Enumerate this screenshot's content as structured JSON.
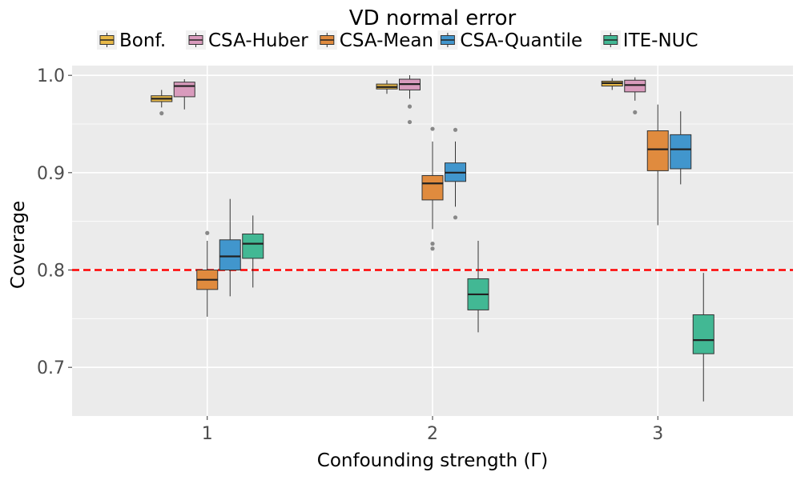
{
  "chart_data": {
    "type": "box",
    "legend": {
      "title": "VD normal error",
      "position": "top"
    },
    "xlabel": "Confounding strength (Γ)",
    "ylabel": "Coverage",
    "categories": [
      "1",
      "2",
      "3"
    ],
    "ylim": [
      0.65,
      1.01
    ],
    "yticks": [
      "0.7",
      "0.8",
      "0.9",
      "1.0"
    ],
    "reference_line": {
      "y": 0.8,
      "color": "#ff0000",
      "style": "dashed"
    },
    "grid": true,
    "series": [
      {
        "name": "Bonf.",
        "color": "#e8b948",
        "boxes": [
          {
            "category": "1",
            "whisker_low": 0.967,
            "q1": 0.973,
            "median": 0.976,
            "q3": 0.979,
            "whisker_high": 0.985,
            "outliers": [
              0.961
            ]
          },
          {
            "category": "2",
            "whisker_low": 0.981,
            "q1": 0.986,
            "median": 0.988,
            "q3": 0.991,
            "whisker_high": 0.995,
            "outliers": []
          },
          {
            "category": "3",
            "whisker_low": 0.985,
            "q1": 0.989,
            "median": 0.992,
            "q3": 0.994,
            "whisker_high": 0.997,
            "outliers": []
          }
        ]
      },
      {
        "name": "CSA-Huber",
        "color": "#d99bbd",
        "boxes": [
          {
            "category": "1",
            "whisker_low": 0.965,
            "q1": 0.978,
            "median": 0.989,
            "q3": 0.993,
            "whisker_high": 0.996,
            "outliers": []
          },
          {
            "category": "2",
            "whisker_low": 0.976,
            "q1": 0.985,
            "median": 0.991,
            "q3": 0.996,
            "whisker_high": 1.0,
            "outliers": [
              0.968,
              0.952
            ]
          },
          {
            "category": "3",
            "whisker_low": 0.974,
            "q1": 0.983,
            "median": 0.99,
            "q3": 0.995,
            "whisker_high": 0.998,
            "outliers": [
              0.962
            ]
          }
        ]
      },
      {
        "name": "CSA-Mean",
        "color": "#e08b3e",
        "boxes": [
          {
            "category": "1",
            "whisker_low": 0.752,
            "q1": 0.78,
            "median": 0.79,
            "q3": 0.8,
            "whisker_high": 0.83,
            "outliers": [
              0.838
            ]
          },
          {
            "category": "2",
            "whisker_low": 0.842,
            "q1": 0.872,
            "median": 0.889,
            "q3": 0.897,
            "whisker_high": 0.932,
            "outliers": [
              0.945,
              0.827,
              0.822
            ]
          },
          {
            "category": "3",
            "whisker_low": 0.846,
            "q1": 0.902,
            "median": 0.924,
            "q3": 0.943,
            "whisker_high": 0.97,
            "outliers": []
          }
        ]
      },
      {
        "name": "CSA-Quantile",
        "color": "#4196cd",
        "boxes": [
          {
            "category": "1",
            "whisker_low": 0.773,
            "q1": 0.8,
            "median": 0.814,
            "q3": 0.831,
            "whisker_high": 0.873,
            "outliers": []
          },
          {
            "category": "2",
            "whisker_low": 0.865,
            "q1": 0.891,
            "median": 0.9,
            "q3": 0.91,
            "whisker_high": 0.932,
            "outliers": [
              0.944,
              0.854
            ]
          },
          {
            "category": "3",
            "whisker_low": 0.888,
            "q1": 0.904,
            "median": 0.924,
            "q3": 0.939,
            "whisker_high": 0.963,
            "outliers": []
          }
        ]
      },
      {
        "name": "ITE-NUC",
        "color": "#42b894",
        "boxes": [
          {
            "category": "1",
            "whisker_low": 0.782,
            "q1": 0.812,
            "median": 0.827,
            "q3": 0.837,
            "whisker_high": 0.856,
            "outliers": []
          },
          {
            "category": "2",
            "whisker_low": 0.736,
            "q1": 0.759,
            "median": 0.775,
            "q3": 0.791,
            "whisker_high": 0.83,
            "outliers": []
          },
          {
            "category": "3",
            "whisker_low": 0.665,
            "q1": 0.714,
            "median": 0.728,
            "q3": 0.754,
            "whisker_high": 0.797,
            "outliers": []
          }
        ]
      }
    ]
  }
}
